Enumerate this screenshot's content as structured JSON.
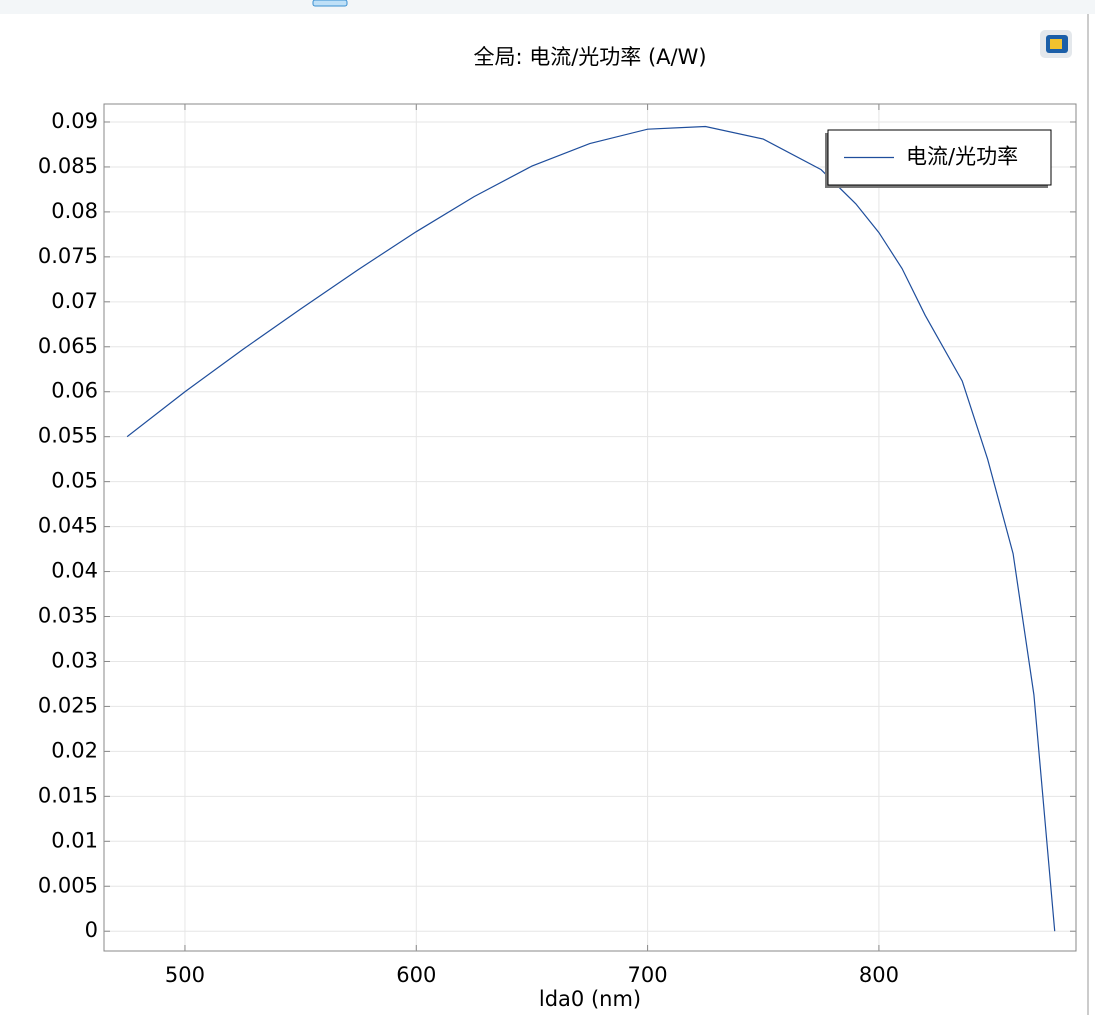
{
  "chart_data": {
    "type": "line",
    "title": "全局: 电流/光功率 (A/W)",
    "x_label": "lda0 (nm)",
    "x": [
      475,
      500,
      525,
      550,
      575,
      600,
      625,
      650,
      675,
      700,
      725,
      750,
      775,
      790,
      800,
      810,
      820,
      836,
      847,
      858,
      867,
      876
    ],
    "series": [
      {
        "name": "电流/光功率",
        "color": "#1f4e9c",
        "values": [
          0.055,
          0.06,
          0.0647,
          0.0692,
          0.0736,
          0.0778,
          0.0817,
          0.0851,
          0.0876,
          0.0892,
          0.0895,
          0.0881,
          0.0847,
          0.0809,
          0.0777,
          0.0737,
          0.0685,
          0.0612,
          0.0525,
          0.042,
          0.0263,
          0
        ]
      }
    ],
    "xlim": [
      465,
      885.2
    ],
    "xticks": [
      500,
      600,
      700,
      800
    ],
    "ylim": [
      -0.0022,
      0.092
    ],
    "yticks": [
      0,
      0.005,
      0.01,
      0.015,
      0.02,
      0.025,
      0.03,
      0.035,
      0.04,
      0.045,
      0.05,
      0.055,
      0.06,
      0.065,
      0.07,
      0.075,
      0.08,
      0.085,
      0.09
    ],
    "grid": true,
    "legend": "upper right"
  }
}
